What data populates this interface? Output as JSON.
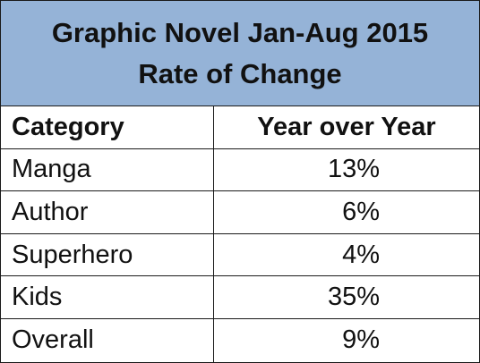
{
  "chart_data": {
    "type": "table",
    "title_lines": [
      "Graphic Novel Jan-Aug 2015",
      "Rate of Change"
    ],
    "columns": [
      "Category",
      "Year over Year"
    ],
    "rows": [
      {
        "category": "Manga",
        "value": "13%"
      },
      {
        "category": "Author",
        "value": "6%"
      },
      {
        "category": "Superhero",
        "value": "4%"
      },
      {
        "category": "Kids",
        "value": "35%"
      },
      {
        "category": "Overall",
        "value": "9%"
      }
    ],
    "colors": {
      "title_background": "#95b3d7",
      "border": "#1a1a1a",
      "text": "#111111"
    }
  }
}
